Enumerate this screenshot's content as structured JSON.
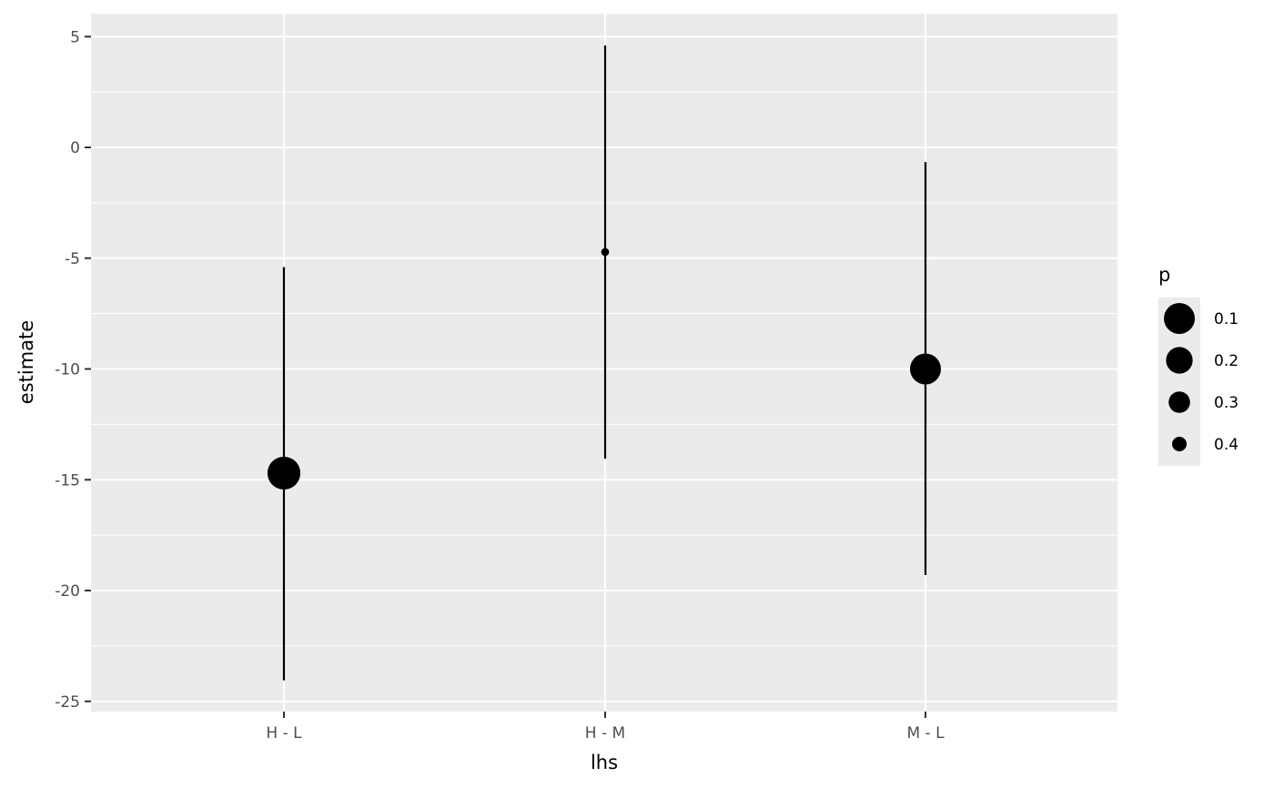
{
  "chart_data": {
    "type": "pointrange",
    "xlabel": "lhs",
    "ylabel": "estimate",
    "categories": [
      "H - L",
      "H - M",
      "M - L"
    ],
    "estimate": [
      -14.7,
      -4.72,
      -10.0
    ],
    "conf_low": [
      -24.05,
      -14.05,
      -19.3
    ],
    "conf_high": [
      -5.4,
      4.6,
      -0.66
    ],
    "p": [
      0.05,
      0.46,
      0.1
    ],
    "ylim": [
      -25.5,
      6
    ],
    "yticks": [
      5,
      0,
      -5,
      -10,
      -15,
      -20,
      -25
    ],
    "ytick_labels": [
      "5",
      "0",
      "-5",
      "-10",
      "-15",
      "-20",
      "-25"
    ],
    "grid": true,
    "legend": {
      "title": "p",
      "placement": "right",
      "breaks": [
        0.1,
        0.2,
        0.3,
        0.4
      ],
      "labels": [
        "0.1",
        "0.2",
        "0.3",
        "0.4"
      ]
    },
    "colors": {
      "panel": "#ebebeb",
      "grid": "#ffffff",
      "marks": "#000000"
    }
  }
}
